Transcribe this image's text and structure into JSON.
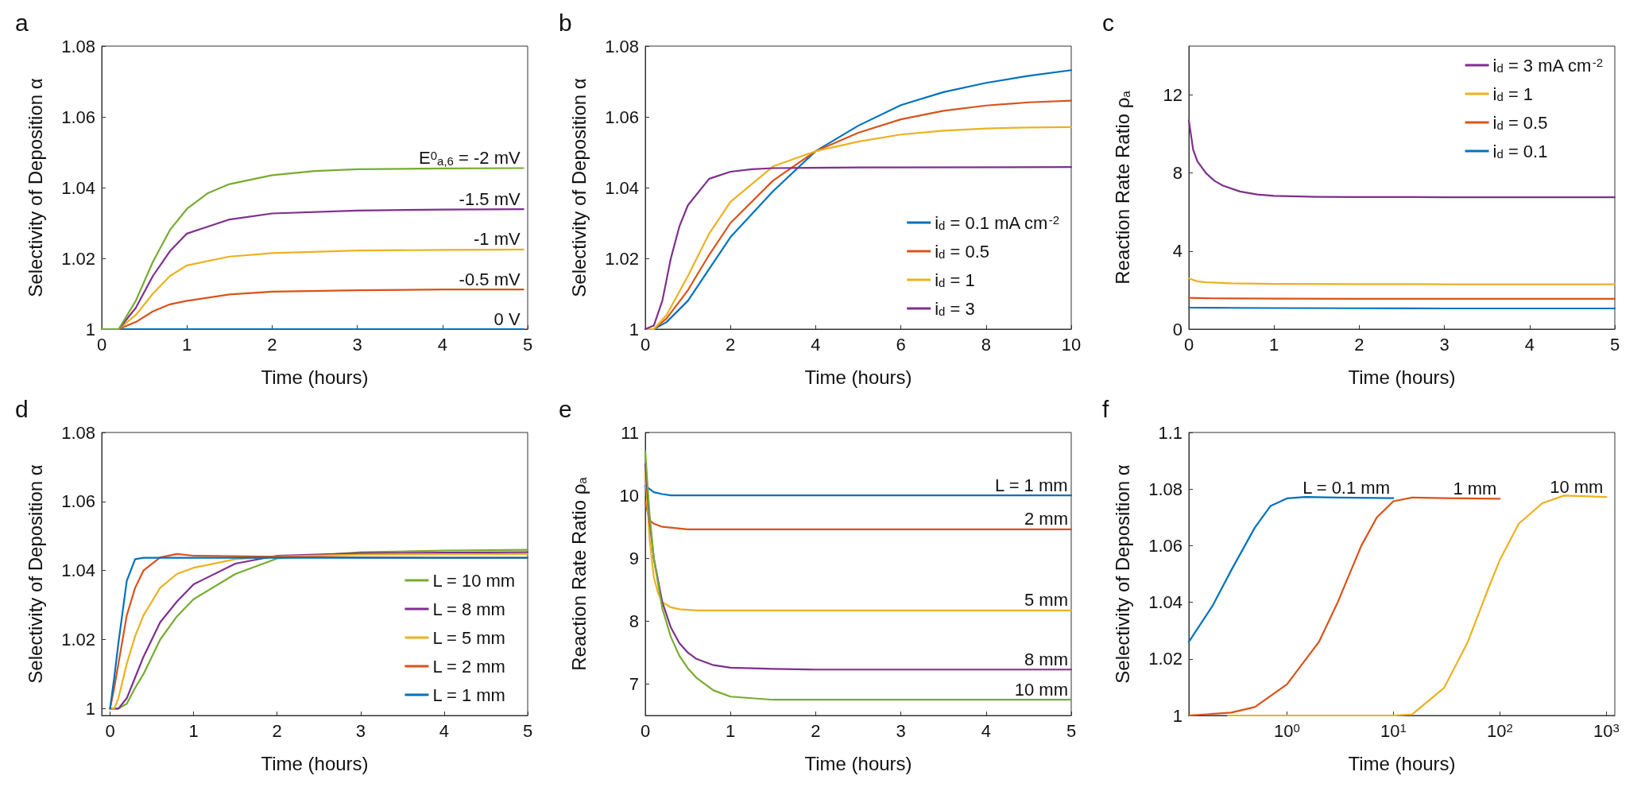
{
  "chart_data": [
    {
      "type": "line",
      "title": "a",
      "xlabel": "Time (hours)",
      "ylabel": "Selectivity of Deposition α",
      "xlim": [
        0,
        5
      ],
      "xticks": [
        0,
        1,
        2,
        3,
        4,
        5
      ],
      "ylim": [
        1,
        1.08
      ],
      "yticks": [
        1,
        1.02,
        1.04,
        1.06,
        1.08
      ],
      "grid": false,
      "legend": false,
      "series": [
        {
          "name": "0 V",
          "color": "#0072bd",
          "x": [
            0,
            1,
            2,
            3,
            4,
            4.95
          ],
          "values": [
            1,
            1,
            1,
            1,
            1,
            1
          ]
        },
        {
          "name": "-0.5 mV",
          "color": "#d95319",
          "x": [
            0,
            0.2,
            0.4,
            0.6,
            0.8,
            1,
            1.5,
            2,
            3,
            4,
            4.95
          ],
          "values": [
            1,
            1,
            1.002,
            1.005,
            1.007,
            1.008,
            1.0098,
            1.0106,
            1.011,
            1.0112,
            1.0112
          ]
        },
        {
          "name": "-1 mV",
          "color": "#edb120",
          "x": [
            0,
            0.2,
            0.4,
            0.6,
            0.8,
            1,
            1.5,
            2,
            3,
            4,
            4.95
          ],
          "values": [
            1,
            1,
            1.004,
            1.01,
            1.015,
            1.018,
            1.0205,
            1.0215,
            1.0222,
            1.0224,
            1.0225
          ]
        },
        {
          "name": "-1.5 mV",
          "color": "#7e2f8e",
          "x": [
            0,
            0.2,
            0.4,
            0.6,
            0.8,
            1,
            1.5,
            2,
            3,
            4,
            4.95
          ],
          "values": [
            1,
            1,
            1.006,
            1.015,
            1.022,
            1.027,
            1.031,
            1.0327,
            1.0335,
            1.0338,
            1.0339
          ]
        },
        {
          "name": "E$^{0}$$_{a,6}$ = -2 mV",
          "color": "#77ac30",
          "x": [
            0,
            0.2,
            0.4,
            0.6,
            0.8,
            1,
            1.25,
            1.5,
            2,
            2.5,
            3,
            4,
            4.95
          ],
          "values": [
            1,
            1,
            1.008,
            1.019,
            1.028,
            1.034,
            1.0385,
            1.041,
            1.0435,
            1.0447,
            1.0452,
            1.0454,
            1.0455
          ]
        }
      ]
    },
    {
      "type": "line",
      "title": "b",
      "xlabel": "Time (hours)",
      "ylabel": "Selectivity of Deposition α",
      "xlim": [
        0,
        10
      ],
      "xticks": [
        0,
        2,
        4,
        6,
        8,
        10
      ],
      "ylim": [
        1,
        1.08
      ],
      "yticks": [
        1,
        1.02,
        1.04,
        1.06,
        1.08
      ],
      "grid": false,
      "legend": "bottom right",
      "series": [
        {
          "name": "i$_{d}$ = 0.1 mA cm$^{-2}$",
          "color": "#0072bd",
          "x": [
            0,
            0.2,
            0.5,
            1,
            1.5,
            2,
            3,
            4,
            5,
            6,
            7,
            8,
            9,
            10
          ],
          "values": [
            1,
            1,
            1.002,
            1.008,
            1.017,
            1.026,
            1.039,
            1.0503,
            1.0575,
            1.0633,
            1.067,
            1.0696,
            1.0716,
            1.0732
          ]
        },
        {
          "name": "i$_{d}$ = 0.5",
          "color": "#d95319",
          "x": [
            0,
            0.2,
            0.5,
            1,
            1.5,
            2,
            3,
            4,
            5,
            6,
            7,
            8,
            9,
            10
          ],
          "values": [
            1,
            1,
            1.003,
            1.011,
            1.021,
            1.03,
            1.042,
            1.0503,
            1.0555,
            1.0593,
            1.0617,
            1.0632,
            1.0641,
            1.0646
          ]
        },
        {
          "name": "i$_{d}$ = 1",
          "color": "#edb120",
          "x": [
            0,
            0.2,
            0.5,
            1,
            1.5,
            2,
            3,
            4,
            5,
            6,
            7,
            8,
            9,
            10
          ],
          "values": [
            1,
            1,
            1.004,
            1.015,
            1.027,
            1.036,
            1.046,
            1.0503,
            1.053,
            1.055,
            1.0561,
            1.0567,
            1.057,
            1.0571
          ]
        },
        {
          "name": "i$_{d}$ = 3",
          "color": "#7e2f8e",
          "x": [
            0,
            0.2,
            0.4,
            0.6,
            0.8,
            1,
            1.5,
            2,
            2.5,
            3,
            5,
            10
          ],
          "values": [
            1,
            1.001,
            1.008,
            1.02,
            1.029,
            1.035,
            1.0425,
            1.0445,
            1.0452,
            1.0455,
            1.0457,
            1.0458
          ]
        }
      ]
    },
    {
      "type": "line",
      "title": "c",
      "xlabel": "Time (hours)",
      "ylabel": "Reaction Rate Ratio ρ$_{a}$",
      "xlim": [
        0,
        5
      ],
      "xticks": [
        0,
        1,
        2,
        3,
        4,
        5
      ],
      "ylim": [
        0,
        14.5
      ],
      "yticks": [
        0,
        4,
        8,
        12
      ],
      "grid": false,
      "legend": "top right",
      "series": [
        {
          "name": "i$_{d}$ = 3 mA cm$^{-2}$",
          "color": "#7e2f8e",
          "x": [
            0,
            0.05,
            0.1,
            0.2,
            0.3,
            0.4,
            0.6,
            0.8,
            1,
            1.5,
            2,
            3,
            4,
            5
          ],
          "values": [
            10.7,
            9.2,
            8.6,
            8,
            7.6,
            7.35,
            7.05,
            6.9,
            6.83,
            6.78,
            6.77,
            6.76,
            6.76,
            6.76
          ]
        },
        {
          "name": "i$_{d}$ = 1",
          "color": "#edb120",
          "x": [
            0,
            0.1,
            0.2,
            0.5,
            1,
            2,
            3,
            4,
            5
          ],
          "values": [
            2.6,
            2.45,
            2.4,
            2.35,
            2.32,
            2.31,
            2.3,
            2.3,
            2.3
          ]
        },
        {
          "name": "i$_{d}$ = 0.5",
          "color": "#d95319",
          "x": [
            0,
            0.2,
            0.5,
            1,
            2,
            3,
            4,
            5
          ],
          "values": [
            1.6,
            1.58,
            1.57,
            1.56,
            1.55,
            1.55,
            1.55,
            1.55
          ]
        },
        {
          "name": "i$_{d}$ = 0.1",
          "color": "#0072bd",
          "x": [
            0,
            0.5,
            1,
            2,
            3,
            4,
            5
          ],
          "values": [
            1.1,
            1.09,
            1.08,
            1.07,
            1.06,
            1.06,
            1.06
          ]
        }
      ]
    },
    {
      "type": "line",
      "title": "d",
      "xlabel": "Time (hours)",
      "ylabel": "Selectivity of Deposition α",
      "xlim": [
        -0.1,
        5
      ],
      "xticks": [
        0,
        1,
        2,
        3,
        4,
        5
      ],
      "ylim": [
        0.998,
        1.08
      ],
      "yticks": [
        1,
        1.02,
        1.04,
        1.06,
        1.08
      ],
      "grid": false,
      "legend": "bottom right",
      "series": [
        {
          "name": "L = 10 mm",
          "color": "#77ac30",
          "x": [
            0,
            0.1,
            0.2,
            0.3,
            0.4,
            0.6,
            0.8,
            1,
            1.5,
            2,
            3,
            4,
            5
          ],
          "values": [
            1,
            1,
            1.0014,
            1.006,
            1.01,
            1.02,
            1.0267,
            1.0317,
            1.039,
            1.0435,
            1.0453,
            1.0458,
            1.046
          ]
        },
        {
          "name": "L = 8 mm",
          "color": "#7e2f8e",
          "x": [
            0,
            0.1,
            0.2,
            0.3,
            0.4,
            0.6,
            0.8,
            1,
            1.5,
            2,
            3,
            4,
            5
          ],
          "values": [
            1,
            1,
            1.003,
            1.009,
            1.015,
            1.025,
            1.031,
            1.036,
            1.042,
            1.0443,
            1.045,
            1.0452,
            1.0453
          ]
        },
        {
          "name": "L = 5 mm",
          "color": "#edb120",
          "x": [
            0,
            0.05,
            0.1,
            0.2,
            0.3,
            0.4,
            0.6,
            0.8,
            1,
            1.5,
            2,
            3,
            4,
            5
          ],
          "values": [
            1,
            1,
            1.003,
            1.013,
            1.021,
            1.027,
            1.035,
            1.039,
            1.0408,
            1.0433,
            1.0441,
            1.0446,
            1.0447,
            1.0448
          ]
        },
        {
          "name": "L = 2 mm",
          "color": "#d95319",
          "x": [
            0,
            0.05,
            0.1,
            0.2,
            0.3,
            0.4,
            0.6,
            0.8,
            1,
            2,
            3,
            4,
            5
          ],
          "values": [
            1,
            1.006,
            1.013,
            1.027,
            1.035,
            1.04,
            1.0438,
            1.0448,
            1.0443,
            1.044,
            1.0438,
            1.0437,
            1.0437
          ]
        },
        {
          "name": "L = 1 mm",
          "color": "#0072bd",
          "x": [
            0,
            0.05,
            0.1,
            0.2,
            0.3,
            0.4,
            1,
            2,
            3,
            4,
            5
          ],
          "values": [
            1,
            1.009,
            1.019,
            1.037,
            1.0433,
            1.0437,
            1.0437,
            1.0437,
            1.0437,
            1.0437,
            1.0437
          ]
        }
      ]
    },
    {
      "type": "line",
      "title": "e",
      "xlabel": "Time (hours)",
      "ylabel": "Reaction Rate Ratio ρ$_{a}$",
      "xlim": [
        0,
        5
      ],
      "xticks": [
        0,
        1,
        2,
        3,
        4,
        5
      ],
      "ylim": [
        6.5,
        11
      ],
      "yticks": [
        7,
        8,
        9,
        10,
        11
      ],
      "grid": false,
      "legend": false,
      "series": [
        {
          "name": "L = 1 mm",
          "color": "#0072bd",
          "x": [
            0,
            0.05,
            0.1,
            0.2,
            0.3,
            1,
            2,
            3,
            4,
            5
          ],
          "values": [
            10.15,
            10.1,
            10.05,
            10.02,
            10,
            10,
            10,
            10,
            10,
            10
          ]
        },
        {
          "name": "2 mm",
          "color": "#d95319",
          "x": [
            0,
            0.05,
            0.1,
            0.2,
            0.5,
            1,
            2,
            3,
            4,
            5
          ],
          "values": [
            9.9,
            9.6,
            9.55,
            9.5,
            9.46,
            9.46,
            9.46,
            9.46,
            9.46,
            9.46
          ]
        },
        {
          "name": "5 mm",
          "color": "#edb120",
          "x": [
            0,
            0.05,
            0.1,
            0.15,
            0.2,
            0.3,
            0.4,
            0.6,
            1,
            2,
            3,
            4,
            5
          ],
          "values": [
            10.4,
            9.3,
            8.7,
            8.45,
            8.3,
            8.22,
            8.19,
            8.17,
            8.17,
            8.17,
            8.17,
            8.17,
            8.17
          ]
        },
        {
          "name": "8 mm",
          "color": "#7e2f8e",
          "x": [
            0,
            0.05,
            0.1,
            0.2,
            0.3,
            0.4,
            0.5,
            0.6,
            0.8,
            1,
            1.5,
            2,
            3,
            4,
            5
          ],
          "values": [
            10.5,
            9.6,
            9,
            8.3,
            7.9,
            7.65,
            7.5,
            7.4,
            7.3,
            7.26,
            7.24,
            7.23,
            7.23,
            7.23,
            7.23
          ]
        },
        {
          "name": "10 mm",
          "color": "#77ac30",
          "x": [
            0,
            0.05,
            0.1,
            0.2,
            0.3,
            0.4,
            0.5,
            0.6,
            0.8,
            1,
            1.5,
            2,
            3,
            4,
            5
          ],
          "values": [
            10.7,
            9.7,
            9,
            8.2,
            7.75,
            7.45,
            7.25,
            7.1,
            6.9,
            6.8,
            6.75,
            6.75,
            6.75,
            6.75,
            6.75
          ]
        }
      ]
    },
    {
      "type": "line",
      "title": "f",
      "xlabel": "Time (hours)",
      "ylabel": "Selectivity of Deposition α",
      "log": "x",
      "xlim": [
        0.12,
        1200
      ],
      "xticks": [
        {
          "value": 1,
          "label": "10$^{0}$"
        },
        {
          "value": 10,
          "label": "10$^{1}$"
        },
        {
          "value": 100,
          "label": "10$^{2}$"
        },
        {
          "value": 1000,
          "label": "10$^{3}$"
        }
      ],
      "ylim": [
        1,
        1.1
      ],
      "yticks": [
        1,
        1.02,
        1.04,
        1.06,
        1.08,
        1.1
      ],
      "grid": false,
      "legend": false,
      "series": [
        {
          "name": "L = 0.1 mm",
          "color": "#0072bd",
          "x": [
            0.12,
            0.2,
            0.3,
            0.5,
            0.7,
            1,
            1.5,
            3,
            10
          ],
          "values": [
            1.026,
            1.0387,
            1.0513,
            1.0664,
            1.074,
            1.0767,
            1.0772,
            1.077,
            1.0768
          ]
        },
        {
          "name": "1 mm",
          "color": "#d95319",
          "x": [
            0.12,
            0.3,
            0.5,
            1,
            2,
            3,
            5,
            7,
            10,
            15,
            30,
            100
          ],
          "values": [
            1,
            1.001,
            1.003,
            1.011,
            1.026,
            1.04,
            1.06,
            1.07,
            1.0757,
            1.077,
            1.0768,
            1.0766
          ]
        },
        {
          "name": "10 mm",
          "color": "#edb120",
          "x": [
            0.28,
            1,
            10,
            15,
            30,
            50,
            80,
            100,
            150,
            250,
            400,
            1000
          ],
          "values": [
            1,
            1,
            1,
            1.0004,
            1.0098,
            1.026,
            1.046,
            1.055,
            1.0677,
            1.075,
            1.0777,
            1.0772
          ]
        }
      ]
    }
  ]
}
